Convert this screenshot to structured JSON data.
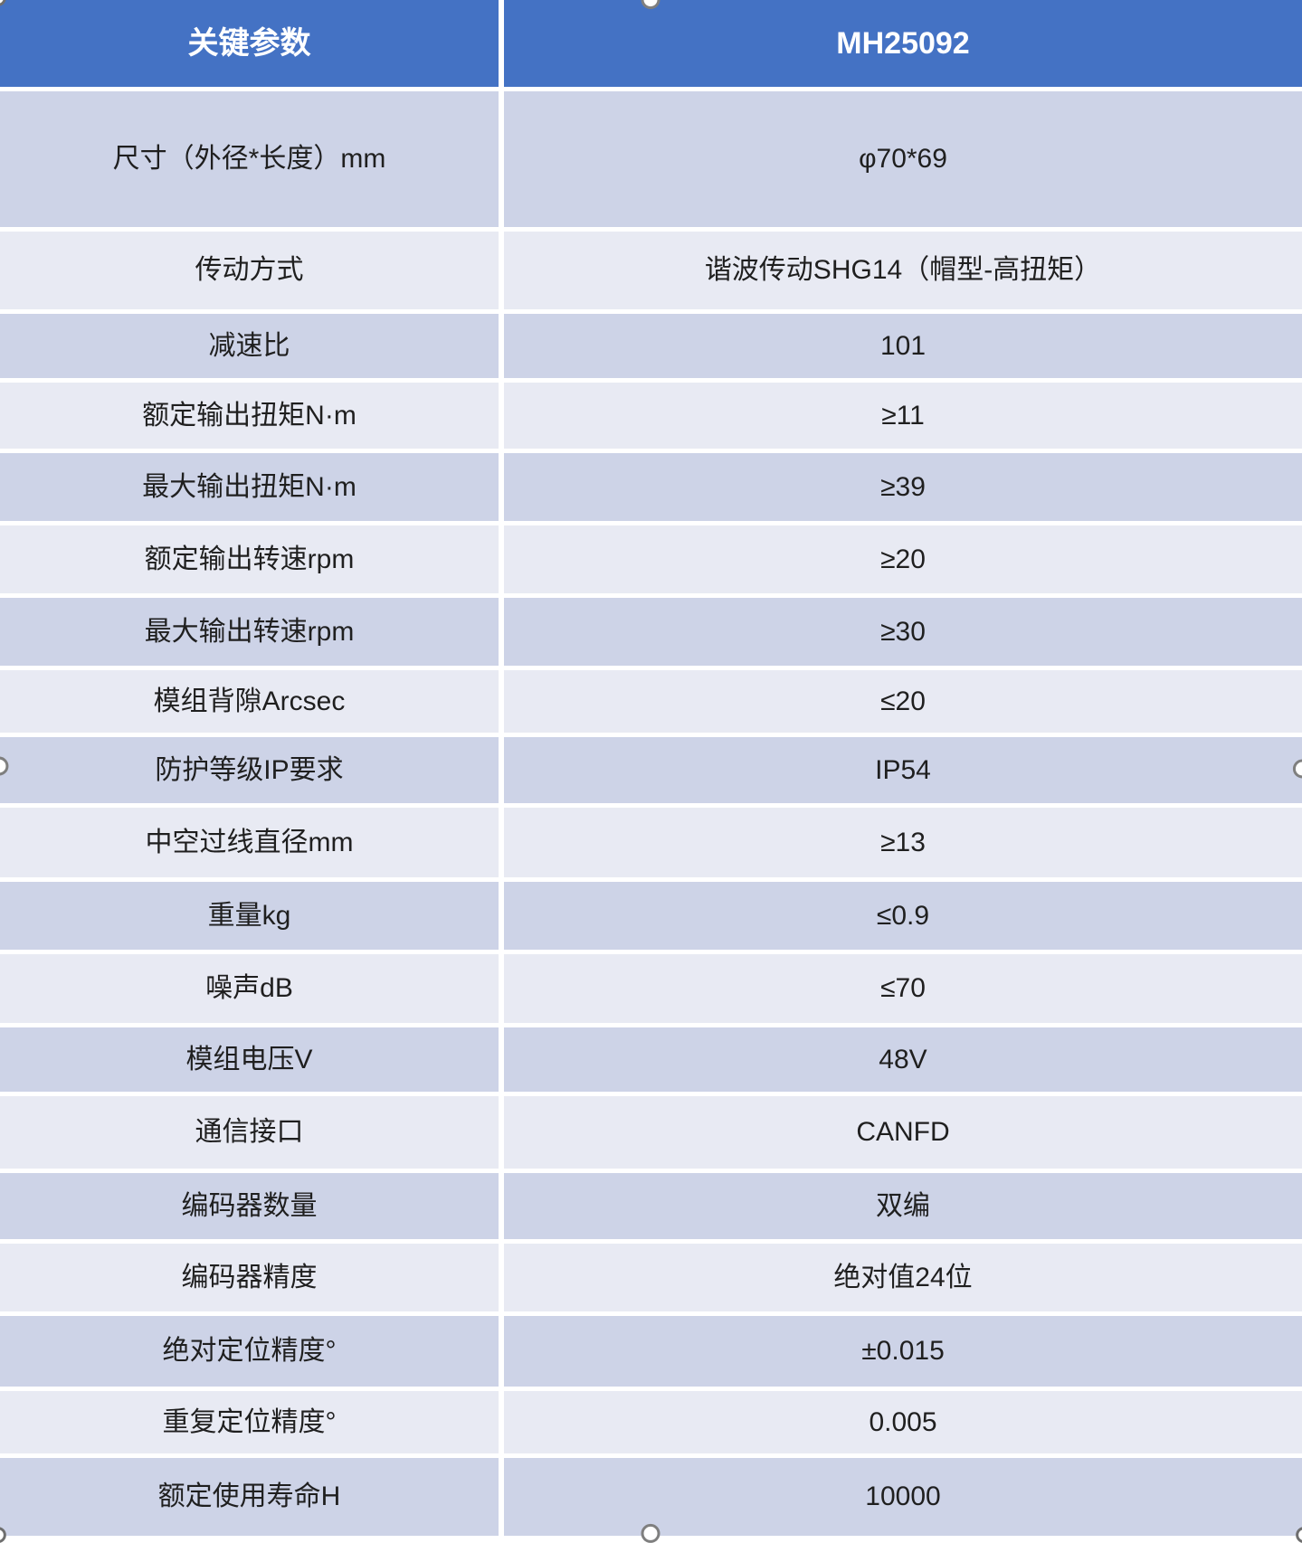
{
  "table": {
    "title": "spec-table",
    "header": {
      "param_col": "关键参数",
      "model_col": "MH25092"
    },
    "rows": [
      {
        "label": "尺寸（外径*长度）mm",
        "value": "φ70*69"
      },
      {
        "label": "传动方式",
        "value": "谐波传动SHG14（帽型-高扭矩）"
      },
      {
        "label": "减速比",
        "value": "101"
      },
      {
        "label": "额定输出扭矩N·m",
        "value": "≥11"
      },
      {
        "label": "最大输出扭矩N·m",
        "value": "≥39"
      },
      {
        "label": "额定输出转速rpm",
        "value": "≥20"
      },
      {
        "label": "最大输出转速rpm",
        "value": "≥30"
      },
      {
        "label": "模组背隙Arcsec",
        "value": "≤20"
      },
      {
        "label": "防护等级IP要求",
        "value": "IP54"
      },
      {
        "label": "中空过线直径mm",
        "value": "≥13"
      },
      {
        "label": "重量kg",
        "value": "≤0.9"
      },
      {
        "label": "噪声dB",
        "value": "≤70"
      },
      {
        "label": "模组电压V",
        "value": "48V"
      },
      {
        "label": "通信接口",
        "value": "CANFD"
      },
      {
        "label": "编码器数量",
        "value": "双编"
      },
      {
        "label": "编码器精度",
        "value": "绝对值24位"
      },
      {
        "label": "绝对定位精度°",
        "value": "±0.015"
      },
      {
        "label": "重复定位精度°",
        "value": "0.005"
      },
      {
        "label": "额定使用寿命H",
        "value": "10000"
      }
    ],
    "colors": {
      "header_bg": "#4472C4",
      "header_text": "#FFFFFF",
      "row_band_dark": "#CDD3E7",
      "row_band_light": "#E8EAF3",
      "body_text": "#1F1F1F",
      "grid_gap": "#FFFFFF"
    }
  },
  "selection_handles": {
    "description": "table selection resize handles",
    "positions": [
      "top-center",
      "bottom-center",
      "left-middle",
      "right-middle",
      "top-left",
      "bottom-left",
      "bottom-right"
    ]
  }
}
